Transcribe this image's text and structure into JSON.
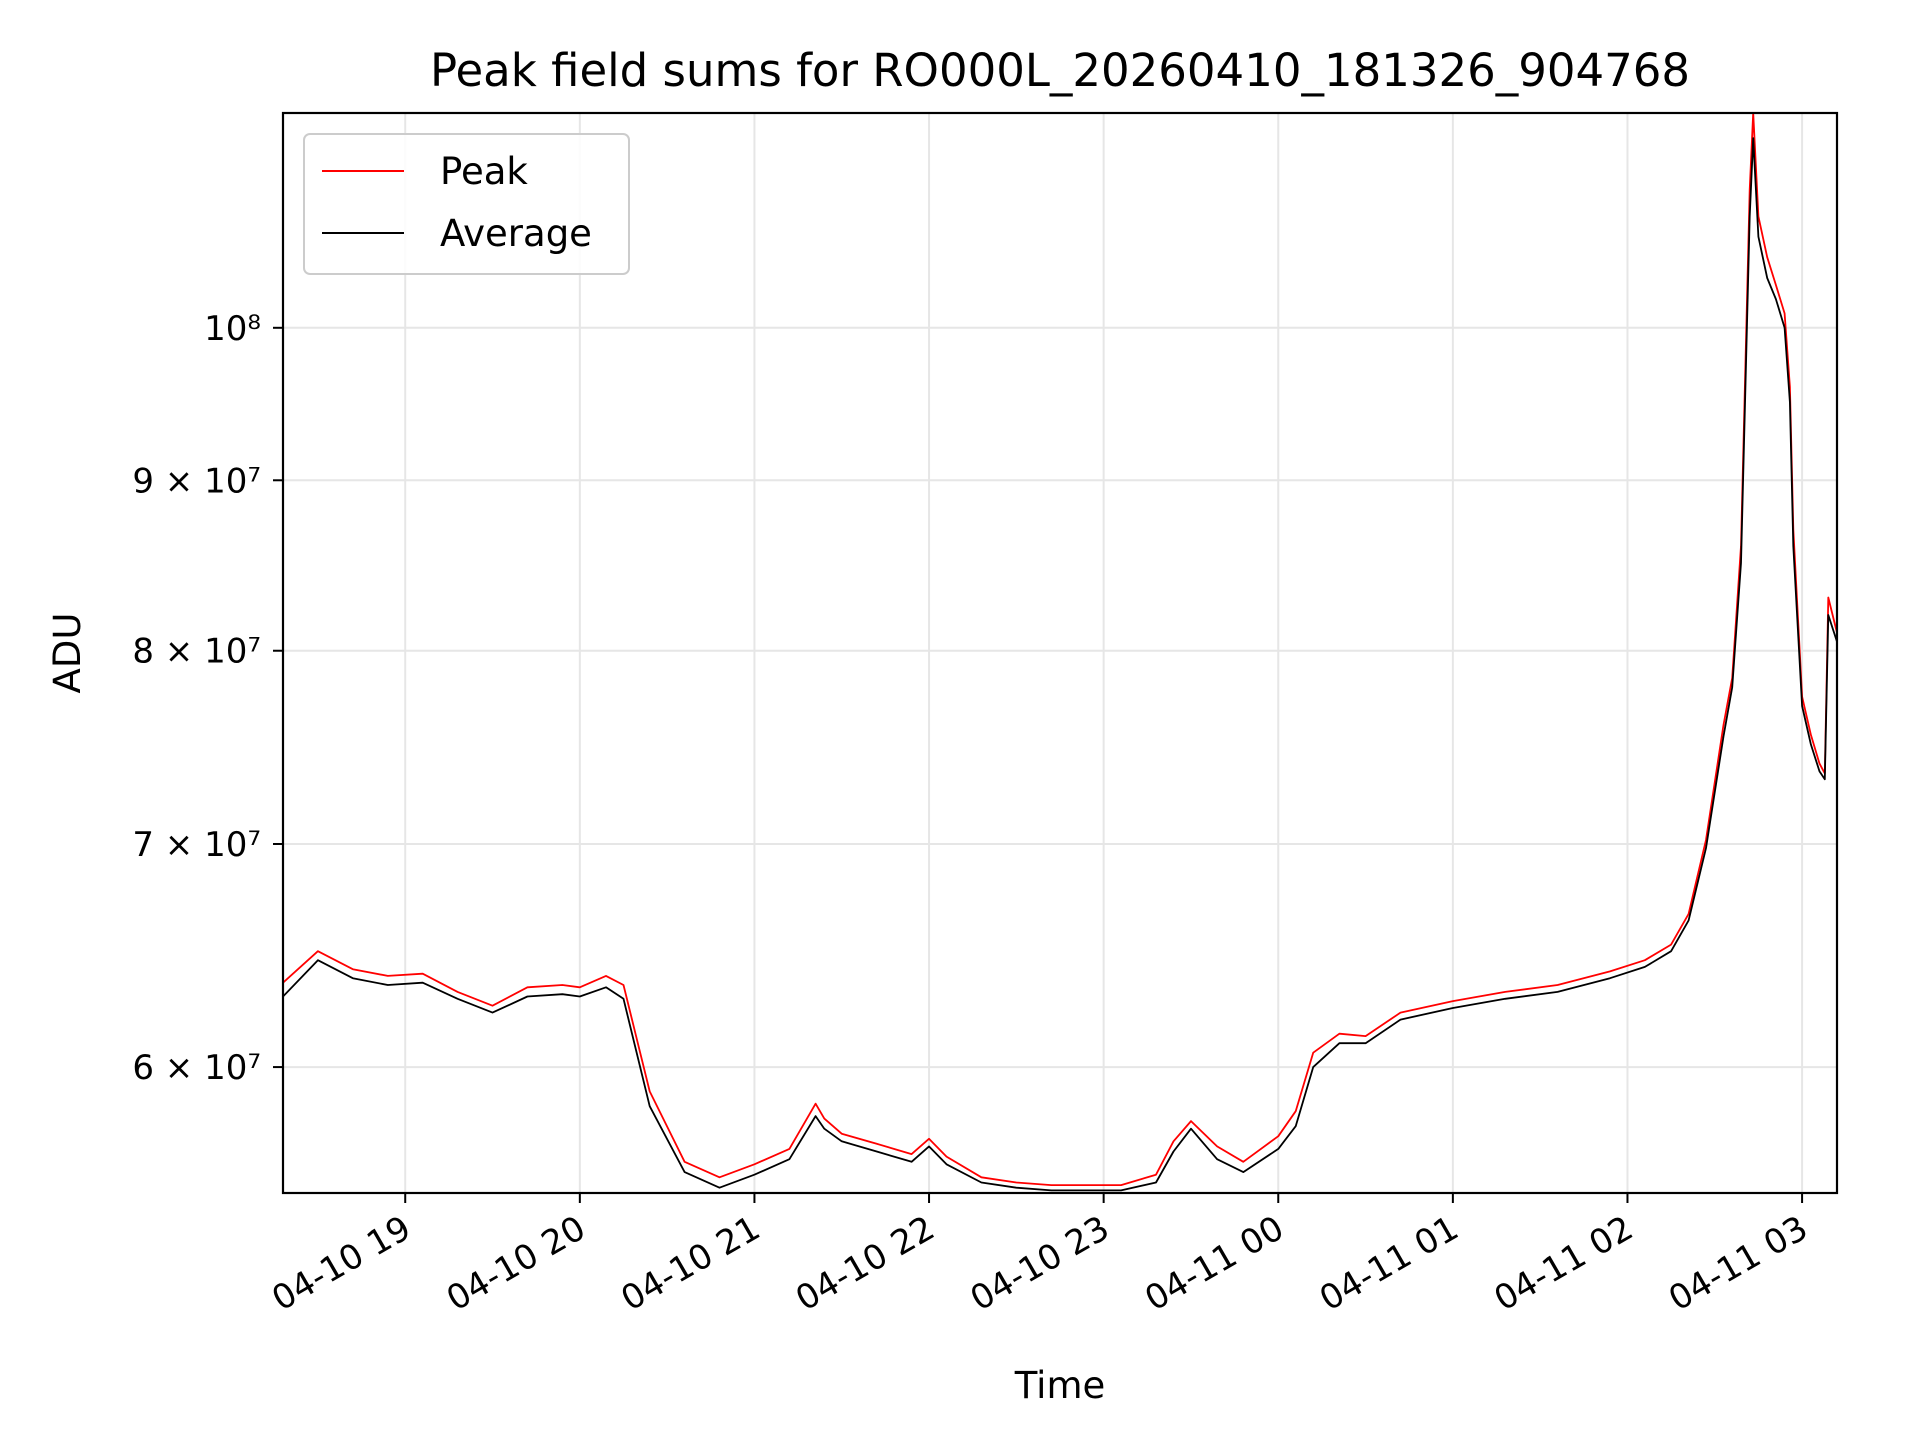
{
  "chart_data": {
    "type": "line",
    "title": "Peak field sums for RO000L_20260410_181326_904768",
    "xlabel": "Time",
    "ylabel": "ADU",
    "yscale": "log",
    "grid": true,
    "legend_position": "top-left",
    "x_unit": "hours since 2026-04-10 18:00",
    "xlim": [
      18.3,
      27.2
    ],
    "ylim": [
      55000000,
      116000000
    ],
    "x_ticks": [
      {
        "value": 19,
        "label": "04-10 19"
      },
      {
        "value": 20,
        "label": "04-10 20"
      },
      {
        "value": 21,
        "label": "04-10 21"
      },
      {
        "value": 22,
        "label": "04-10 22"
      },
      {
        "value": 23,
        "label": "04-10 23"
      },
      {
        "value": 24,
        "label": "04-11 00"
      },
      {
        "value": 25,
        "label": "04-11 01"
      },
      {
        "value": 26,
        "label": "04-11 02"
      },
      {
        "value": 27,
        "label": "04-11 03"
      }
    ],
    "y_ticks": [
      {
        "value": 60000000,
        "label": "6 × 10⁷"
      },
      {
        "value": 70000000,
        "label": "7 × 10⁷"
      },
      {
        "value": 80000000,
        "label": "8 × 10⁷"
      },
      {
        "value": 90000000,
        "label": "9 × 10⁷"
      },
      {
        "value": 100000000,
        "label": "10⁸"
      }
    ],
    "series": [
      {
        "name": "Peak",
        "color": "#ff0000",
        "x": [
          18.3,
          18.5,
          18.7,
          18.9,
          19.1,
          19.3,
          19.5,
          19.7,
          19.9,
          20.0,
          20.15,
          20.25,
          20.4,
          20.6,
          20.8,
          21.0,
          21.2,
          21.35,
          21.4,
          21.5,
          21.7,
          21.9,
          22.0,
          22.1,
          22.3,
          22.5,
          22.7,
          22.9,
          23.1,
          23.3,
          23.4,
          23.5,
          23.65,
          23.8,
          24.0,
          24.1,
          24.2,
          24.35,
          24.5,
          24.7,
          25.0,
          25.3,
          25.6,
          25.9,
          26.1,
          26.25,
          26.35,
          26.45,
          26.55,
          26.6,
          26.65,
          26.7,
          26.72,
          26.75,
          26.8,
          26.85,
          26.9,
          26.93,
          26.95,
          27.0,
          27.05,
          27.1,
          27.13,
          27.15,
          27.2
        ],
        "values": [
          63600000,
          65000000,
          64200000,
          63900000,
          64000000,
          63200000,
          62600000,
          63400000,
          63500000,
          63400000,
          63900000,
          63500000,
          59000000,
          56200000,
          55600000,
          56100000,
          56700000,
          58500000,
          57900000,
          57300000,
          56900000,
          56500000,
          57100000,
          56400000,
          55600000,
          55400000,
          55300000,
          55300000,
          55300000,
          55700000,
          57000000,
          57800000,
          56800000,
          56200000,
          57200000,
          58200000,
          60600000,
          61400000,
          61300000,
          62300000,
          62800000,
          63200000,
          63500000,
          64100000,
          64600000,
          65300000,
          66700000,
          70200000,
          76000000,
          78500000,
          86000000,
          110000000,
          116000000,
          108000000,
          105000000,
          103000000,
          101000000,
          96000000,
          87000000,
          77500000,
          75500000,
          74000000,
          73500000,
          83000000,
          81000000
        ]
      },
      {
        "name": "Average",
        "color": "#000000",
        "x": [
          18.3,
          18.5,
          18.7,
          18.9,
          19.1,
          19.3,
          19.5,
          19.7,
          19.9,
          20.0,
          20.15,
          20.25,
          20.4,
          20.6,
          20.8,
          21.0,
          21.2,
          21.35,
          21.4,
          21.5,
          21.7,
          21.9,
          22.0,
          22.1,
          22.3,
          22.5,
          22.7,
          22.9,
          23.1,
          23.3,
          23.4,
          23.5,
          23.65,
          23.8,
          24.0,
          24.1,
          24.2,
          24.35,
          24.5,
          24.7,
          25.0,
          25.3,
          25.6,
          25.9,
          26.1,
          26.25,
          26.35,
          26.45,
          26.55,
          26.6,
          26.65,
          26.7,
          26.72,
          26.75,
          26.8,
          26.85,
          26.9,
          26.93,
          26.95,
          27.0,
          27.05,
          27.1,
          27.13,
          27.15,
          27.2
        ],
        "values": [
          63000000,
          64600000,
          63800000,
          63500000,
          63600000,
          62900000,
          62300000,
          63000000,
          63100000,
          63000000,
          63400000,
          62900000,
          58400000,
          55800000,
          55200000,
          55700000,
          56300000,
          58000000,
          57500000,
          57000000,
          56600000,
          56200000,
          56800000,
          56100000,
          55400000,
          55200000,
          55100000,
          55100000,
          55100000,
          55400000,
          56600000,
          57500000,
          56300000,
          55800000,
          56700000,
          57600000,
          60000000,
          61000000,
          61000000,
          62000000,
          62500000,
          62900000,
          63200000,
          63800000,
          64300000,
          65000000,
          66400000,
          69800000,
          75400000,
          78000000,
          85000000,
          108000000,
          114000000,
          106500000,
          103500000,
          102000000,
          100000000,
          95000000,
          86000000,
          77000000,
          75000000,
          73600000,
          73200000,
          82000000,
          80500000
        ]
      }
    ]
  }
}
